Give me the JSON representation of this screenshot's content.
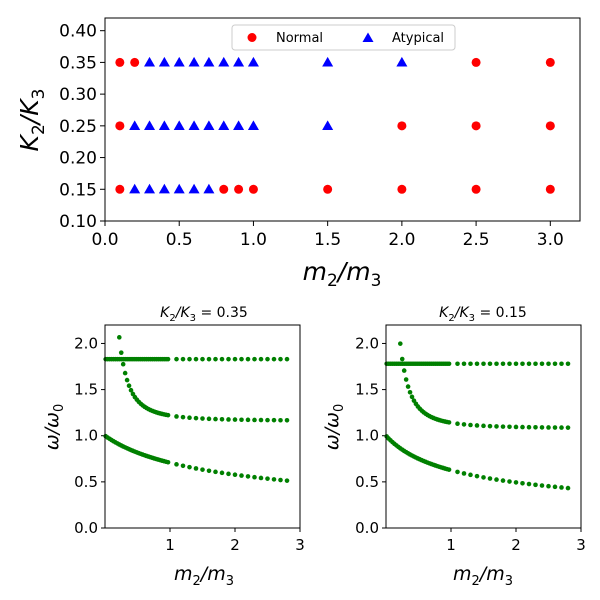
{
  "chart_data": [
    {
      "type": "scatter",
      "xlabel_base": "m",
      "xlabel_sub1": "2",
      "xlabel_mid": "/m",
      "xlabel_sub2": "3",
      "ylabel_base": "K",
      "ylabel_sub1": "2",
      "ylabel_mid": "/K",
      "ylabel_sub2": "3",
      "xlim": [
        0.0,
        3.2
      ],
      "ylim": [
        0.1,
        0.42
      ],
      "xticks": [
        0.0,
        0.5,
        1.0,
        1.5,
        2.0,
        2.5,
        3.0
      ],
      "xtick_labels": [
        "0.0",
        "0.5",
        "1.0",
        "1.5",
        "2.0",
        "2.5",
        "3.0"
      ],
      "yticks": [
        0.1,
        0.15,
        0.2,
        0.25,
        0.3,
        0.35,
        0.4
      ],
      "ytick_labels": [
        "0.10",
        "0.15",
        "0.20",
        "0.25",
        "0.30",
        "0.35",
        "0.40"
      ],
      "legend_position": "top-center",
      "series": [
        {
          "name": "Normal",
          "label": "Normal",
          "color": "#ff0000",
          "marker": "circle",
          "points": [
            [
              0.1,
              0.35
            ],
            [
              0.2,
              0.35
            ],
            [
              2.5,
              0.35
            ],
            [
              3.0,
              0.35
            ],
            [
              0.1,
              0.25
            ],
            [
              2.0,
              0.25
            ],
            [
              2.5,
              0.25
            ],
            [
              3.0,
              0.25
            ],
            [
              0.1,
              0.15
            ],
            [
              0.8,
              0.15
            ],
            [
              0.9,
              0.15
            ],
            [
              1.0,
              0.15
            ],
            [
              1.5,
              0.15
            ],
            [
              2.0,
              0.15
            ],
            [
              2.5,
              0.15
            ],
            [
              3.0,
              0.15
            ]
          ]
        },
        {
          "name": "Atypical",
          "label": "Atypical",
          "color": "#0000ff",
          "marker": "triangle",
          "points": [
            [
              0.3,
              0.35
            ],
            [
              0.4,
              0.35
            ],
            [
              0.5,
              0.35
            ],
            [
              0.6,
              0.35
            ],
            [
              0.7,
              0.35
            ],
            [
              0.8,
              0.35
            ],
            [
              0.9,
              0.35
            ],
            [
              1.0,
              0.35
            ],
            [
              1.5,
              0.35
            ],
            [
              2.0,
              0.35
            ],
            [
              0.2,
              0.25
            ],
            [
              0.3,
              0.25
            ],
            [
              0.4,
              0.25
            ],
            [
              0.5,
              0.25
            ],
            [
              0.6,
              0.25
            ],
            [
              0.7,
              0.25
            ],
            [
              0.8,
              0.25
            ],
            [
              0.9,
              0.25
            ],
            [
              1.0,
              0.25
            ],
            [
              1.5,
              0.25
            ],
            [
              0.2,
              0.15
            ],
            [
              0.3,
              0.15
            ],
            [
              0.4,
              0.15
            ],
            [
              0.5,
              0.15
            ],
            [
              0.6,
              0.15
            ],
            [
              0.7,
              0.15
            ]
          ]
        }
      ]
    },
    {
      "type": "scatter",
      "title_base": "K",
      "title_sub1": "2",
      "title_mid": "/K",
      "title_sub2": "3",
      "title_suffix": " = 0.35",
      "xlabel_base": "m",
      "xlabel_sub1": "2",
      "xlabel_mid": "/m",
      "xlabel_sub2": "3",
      "ylabel_main": "ω/ω",
      "ylabel_sub": "0",
      "xlim": [
        0.0,
        3.0
      ],
      "ylim": [
        0.0,
        2.2
      ],
      "xticks": [
        1,
        2,
        3
      ],
      "xtick_labels": [
        "1",
        "2",
        "3"
      ],
      "yticks": [
        0.0,
        0.5,
        1.0,
        1.5,
        2.0
      ],
      "ytick_labels": [
        "0.0",
        "0.5",
        "1.0",
        "1.5",
        "2.0"
      ],
      "color": "#008000",
      "branches": [
        {
          "name": "lower",
          "kind": "lower",
          "w0": 1.0,
          "a": 1.0
        },
        {
          "name": "flat",
          "kind": "flat",
          "value": 1.83
        },
        {
          "name": "upper",
          "kind": "upper",
          "low": 1.83,
          "inf": 1.12,
          "c": 0.09
        }
      ]
    },
    {
      "type": "scatter",
      "title_base": "K",
      "title_sub1": "2",
      "title_mid": "/K",
      "title_sub2": "3",
      "title_suffix": " = 0.15",
      "xlabel_base": "m",
      "xlabel_sub1": "2",
      "xlabel_mid": "/m",
      "xlabel_sub2": "3",
      "ylabel_main": "ω/ω",
      "ylabel_sub": "0",
      "xlim": [
        0.0,
        3.0
      ],
      "ylim": [
        0.0,
        2.2
      ],
      "xticks": [
        1,
        2,
        3
      ],
      "xtick_labels": [
        "1",
        "2",
        "3"
      ],
      "yticks": [
        0.0,
        0.5,
        1.0,
        1.5,
        2.0
      ],
      "ytick_labels": [
        "0.0",
        "0.5",
        "1.0",
        "1.5",
        "2.0"
      ],
      "color": "#008000",
      "branches": [
        {
          "name": "lower",
          "kind": "lower",
          "w0": 1.0,
          "a": 1.55
        },
        {
          "name": "flat",
          "kind": "flat",
          "value": 1.78
        },
        {
          "name": "upper",
          "kind": "upper",
          "low": 1.78,
          "inf": 1.07,
          "c": 0.02
        }
      ]
    }
  ]
}
